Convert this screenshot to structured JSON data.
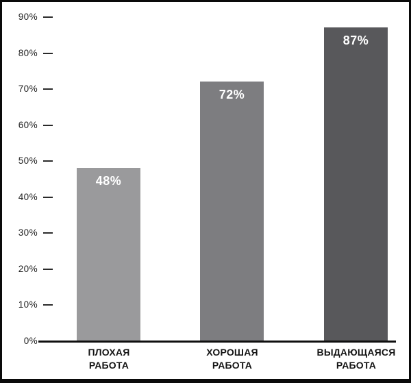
{
  "chart_data": {
    "type": "bar",
    "title": "",
    "xlabel": "",
    "ylabel": "",
    "categories": [
      "ПЛОХАЯ РАБОТА",
      "ХОРОШАЯ РАБОТА",
      "ВЫДАЮЩАЯСЯ РАБОТА"
    ],
    "values": [
      48,
      72,
      87
    ],
    "bars": [
      {
        "category_line1": "ПЛОХАЯ",
        "category_line2": "РАБОТА",
        "value": 48,
        "value_label": "48%",
        "color": "#9a9a9c"
      },
      {
        "category_line1": "ХОРОШАЯ",
        "category_line2": "РАБОТА",
        "value": 72,
        "value_label": "72%",
        "color": "#7d7d80"
      },
      {
        "category_line1": "ВЫДАЮЩАЯСЯ",
        "category_line2": "РАБОТА",
        "value": 87,
        "value_label": "87%",
        "color": "#58585b"
      }
    ],
    "y_axis": {
      "min": 0,
      "max": 90,
      "step": 10,
      "unit": "%",
      "tick_labels": [
        "90%",
        "80%",
        "70%",
        "60%",
        "50%",
        "40%",
        "30%",
        "20%",
        "10%",
        "0%"
      ]
    },
    "grid": false,
    "legend": false,
    "layout": "vertical bars on white background, y ticks as short dashes on left, no gridlines"
  },
  "frame": {
    "border_color": "#0a0a0a",
    "background": "#ffffff",
    "axis_color": "#0f0f0f",
    "tick_color": "#2a2a2a",
    "value_text_color": "#ffffff",
    "category_text_color": "#141414"
  }
}
